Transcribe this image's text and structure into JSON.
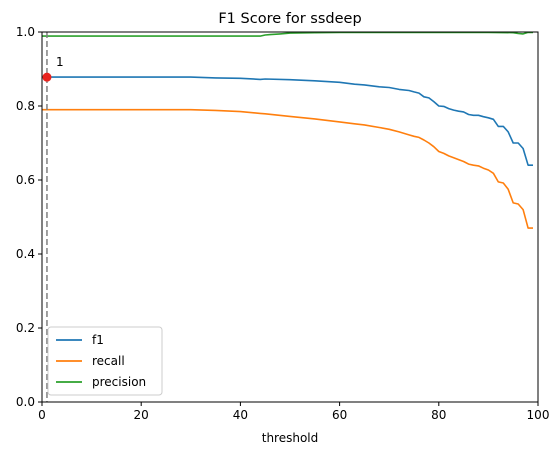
{
  "chart_data": {
    "type": "line",
    "title": "F1 Score for ssdeep",
    "xlabel": "threshold",
    "ylabel": "",
    "xlim": [
      0,
      100
    ],
    "ylim": [
      0,
      1.0
    ],
    "xticks": [
      0,
      20,
      40,
      60,
      80,
      100
    ],
    "yticks": [
      0.0,
      0.2,
      0.4,
      0.6,
      0.8,
      1.0
    ],
    "ytick_labels": [
      "0.0",
      "0.2",
      "0.4",
      "0.6",
      "0.8",
      "1.0"
    ],
    "grid": false,
    "legend_position": "lower-left",
    "series": [
      {
        "name": "f1",
        "color": "#1f77b4",
        "x": [
          0,
          10,
          20,
          30,
          35,
          40,
          44,
          45,
          50,
          55,
          60,
          63,
          65,
          68,
          70,
          72,
          74,
          75,
          76,
          77,
          78,
          79,
          80,
          81,
          82,
          83,
          84,
          85,
          86,
          87,
          88,
          89,
          90,
          91,
          92,
          93,
          94,
          95,
          96,
          97,
          98,
          99
        ],
        "y": [
          0.878,
          0.878,
          0.878,
          0.878,
          0.876,
          0.875,
          0.872,
          0.873,
          0.871,
          0.868,
          0.864,
          0.859,
          0.857,
          0.852,
          0.85,
          0.845,
          0.842,
          0.838,
          0.835,
          0.825,
          0.822,
          0.812,
          0.8,
          0.799,
          0.793,
          0.789,
          0.786,
          0.784,
          0.777,
          0.775,
          0.775,
          0.771,
          0.768,
          0.764,
          0.745,
          0.745,
          0.73,
          0.7,
          0.7,
          0.685,
          0.64,
          0.64
        ]
      },
      {
        "name": "recall",
        "color": "#ff7f0e",
        "x": [
          0,
          10,
          20,
          30,
          35,
          40,
          44,
          45,
          50,
          55,
          60,
          63,
          65,
          68,
          70,
          72,
          74,
          75,
          76,
          77,
          78,
          79,
          80,
          81,
          82,
          83,
          84,
          85,
          86,
          87,
          88,
          89,
          90,
          91,
          92,
          93,
          94,
          95,
          96,
          97,
          98,
          99
        ],
        "y": [
          0.79,
          0.79,
          0.79,
          0.79,
          0.788,
          0.785,
          0.78,
          0.779,
          0.772,
          0.765,
          0.757,
          0.752,
          0.749,
          0.742,
          0.737,
          0.73,
          0.722,
          0.718,
          0.715,
          0.708,
          0.7,
          0.69,
          0.677,
          0.672,
          0.665,
          0.66,
          0.655,
          0.65,
          0.643,
          0.64,
          0.638,
          0.632,
          0.627,
          0.618,
          0.595,
          0.592,
          0.575,
          0.538,
          0.535,
          0.52,
          0.47,
          0.47
        ]
      },
      {
        "name": "precision",
        "color": "#2ca02c",
        "x": [
          0,
          10,
          20,
          30,
          40,
          44,
          45,
          46,
          48,
          50,
          55,
          60,
          70,
          80,
          90,
          95,
          96,
          97,
          98,
          99
        ],
        "y": [
          0.989,
          0.989,
          0.989,
          0.989,
          0.989,
          0.989,
          0.992,
          0.993,
          0.995,
          0.997,
          0.998,
          0.999,
          0.999,
          0.999,
          0.999,
          0.998,
          0.996,
          0.995,
          0.999,
          0.999
        ]
      }
    ],
    "marker": {
      "x": 1,
      "y": 0.878,
      "label": "1",
      "color": "#e8231e"
    },
    "vline": {
      "x": 1,
      "style": "dashed",
      "color": "#808080"
    }
  }
}
